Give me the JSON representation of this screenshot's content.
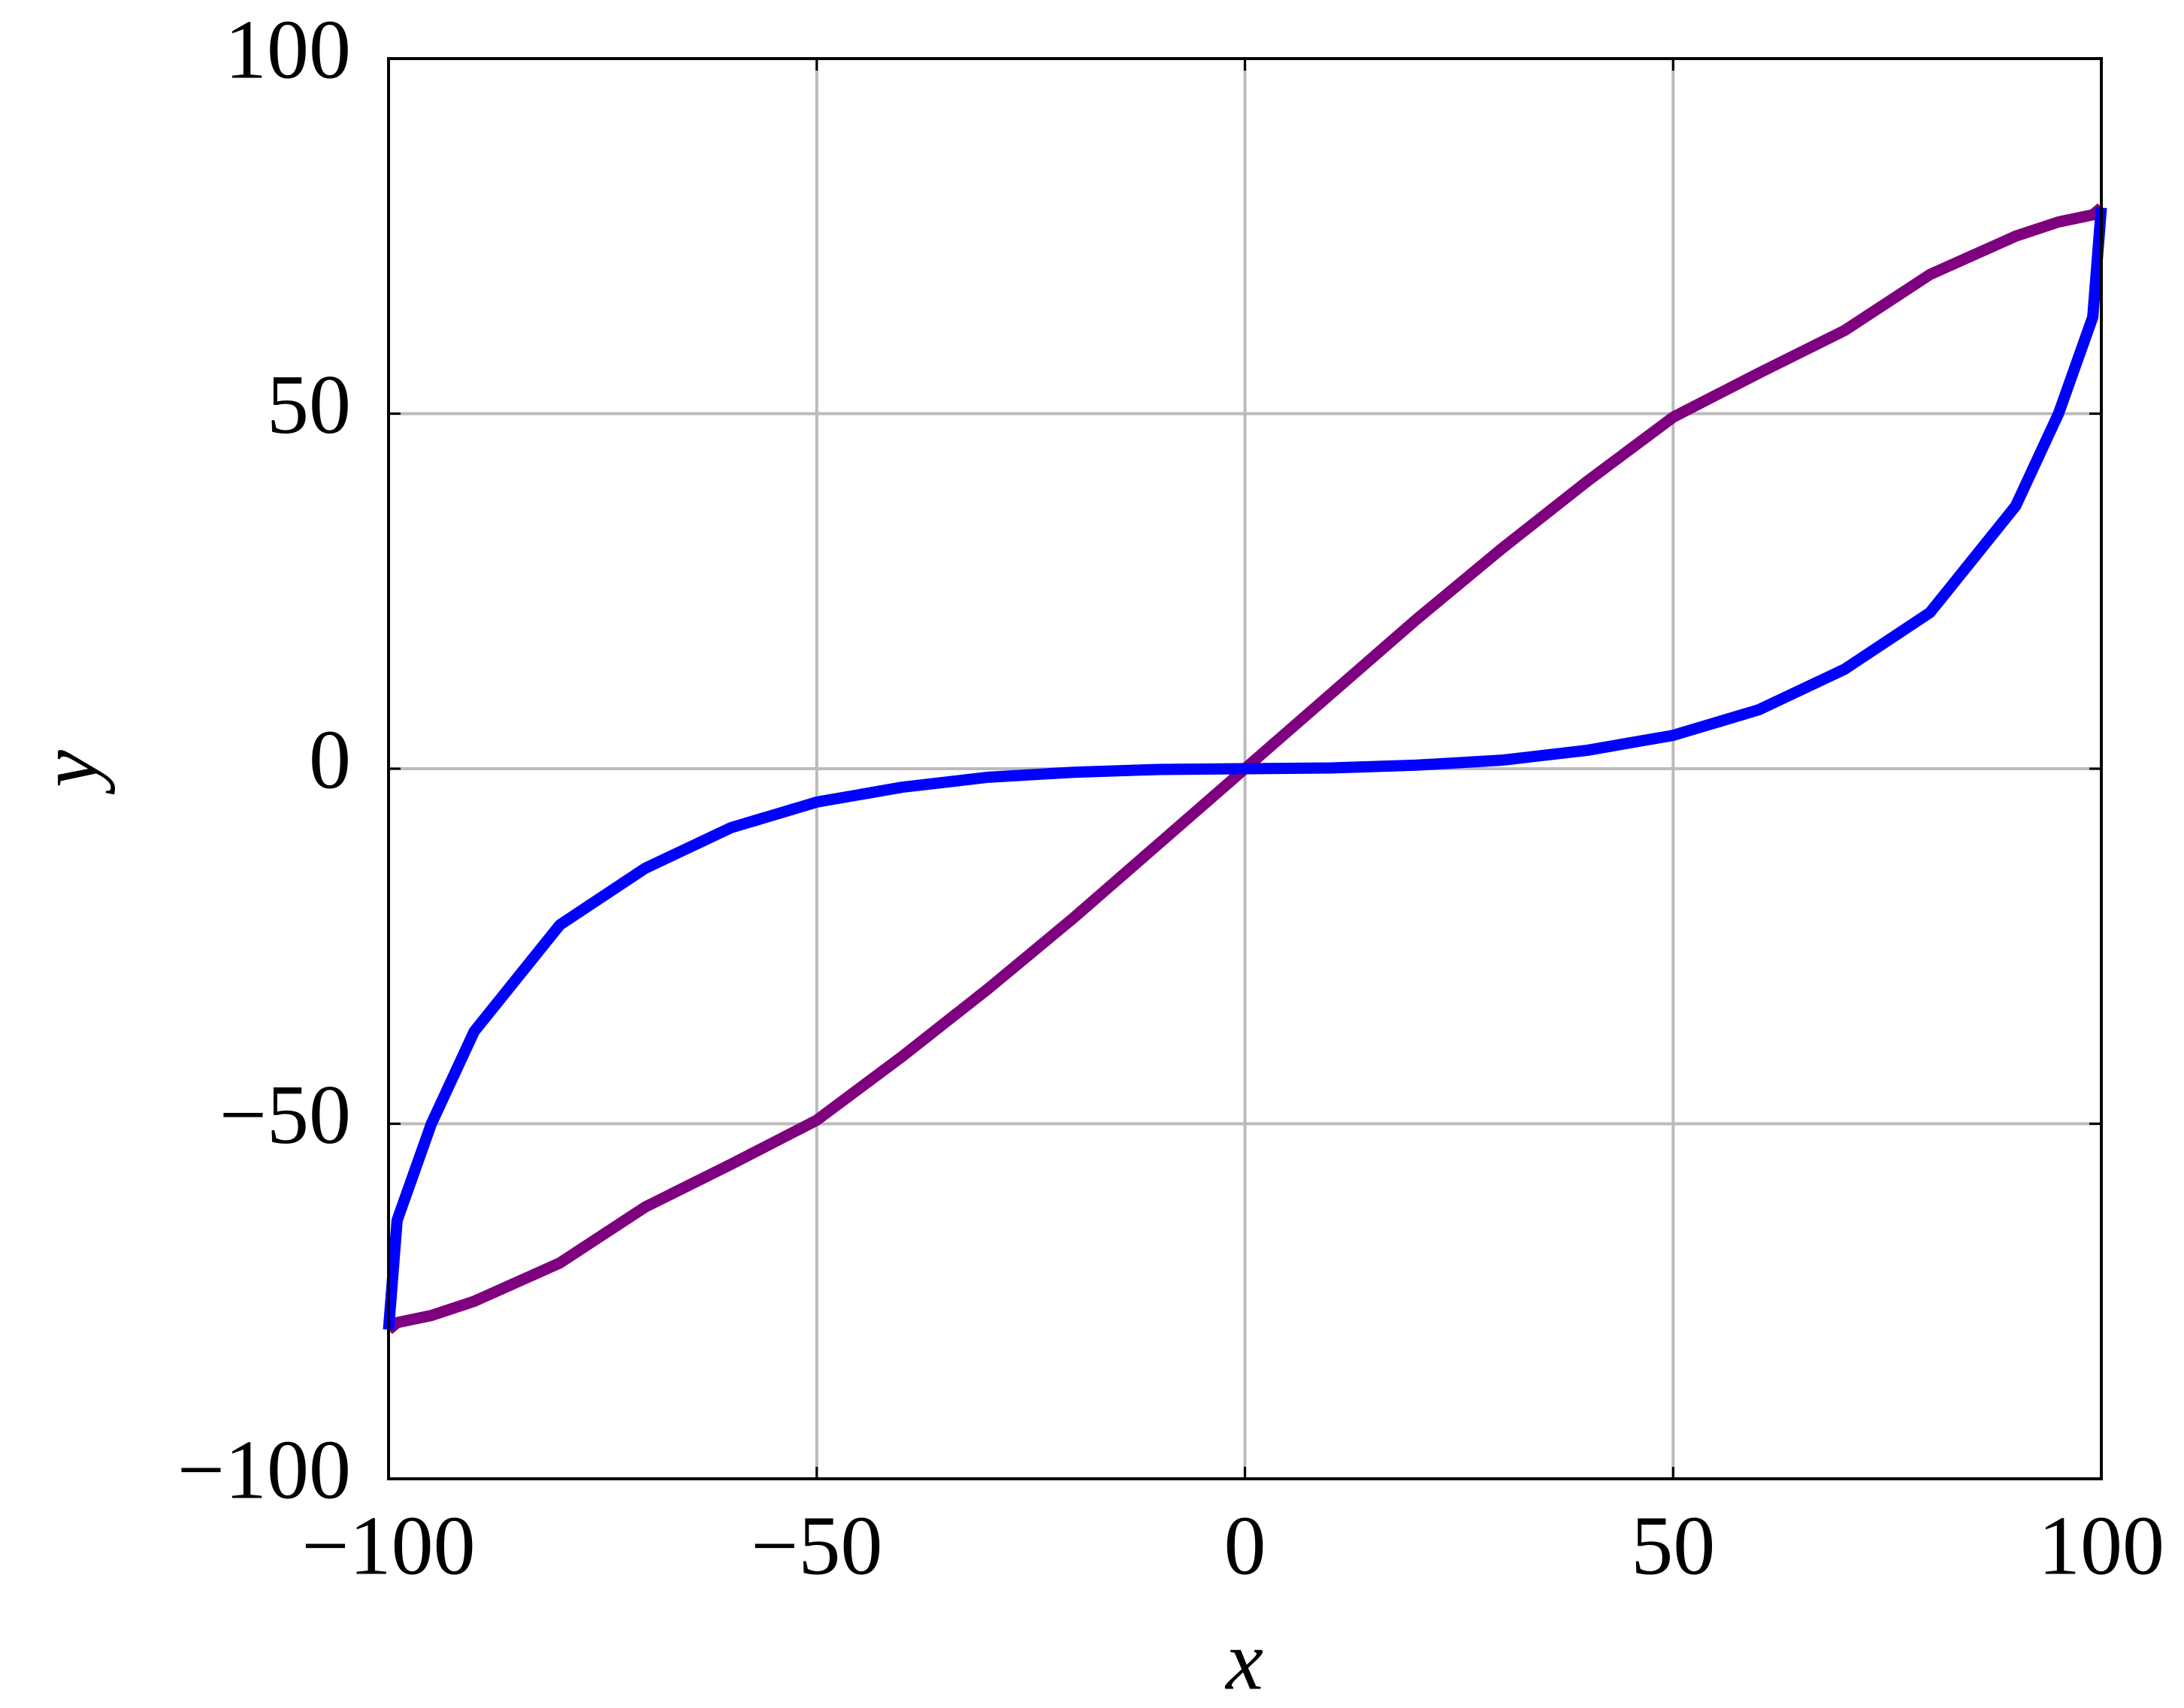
{
  "chart_data": {
    "type": "line",
    "x_label": "x",
    "y_label": "y",
    "x": [
      -100,
      -99,
      -95,
      -90,
      -80,
      -70,
      -60,
      -50,
      -40,
      -30,
      -20,
      -10,
      0,
      10,
      20,
      30,
      40,
      50,
      60,
      70,
      80,
      90,
      95,
      99,
      100
    ],
    "series": [
      {
        "color": "#7f007f",
        "values": [
          -79,
          -78,
          -77,
          -75,
          -69.6,
          -61.7,
          -55.7,
          -49.5,
          -40.5,
          -31,
          -21,
          -10.5,
          0,
          10.5,
          21,
          31,
          40.5,
          49.5,
          55.7,
          61.7,
          69.6,
          75,
          77,
          78,
          79
        ]
      },
      {
        "color": "#0000ff",
        "values": [
          -79,
          -63.6,
          -50,
          -37,
          -22,
          -14,
          -8.3,
          -4.7,
          -2.6,
          -1.2,
          -0.5,
          -0.1,
          0,
          0.1,
          0.5,
          1.2,
          2.6,
          4.7,
          8.3,
          14,
          22,
          37,
          50,
          63.6,
          79
        ]
      }
    ],
    "xlim": [
      -100,
      100
    ],
    "ylim": [
      -100,
      100
    ],
    "xticks": [
      {
        "value": -100,
        "label": "−100"
      },
      {
        "value": -50,
        "label": "−50"
      },
      0,
      50,
      100
    ],
    "yticks": [
      {
        "value": -100,
        "label": "−100"
      },
      {
        "value": -50,
        "label": "−50"
      },
      0,
      50,
      100
    ],
    "grid": true
  }
}
